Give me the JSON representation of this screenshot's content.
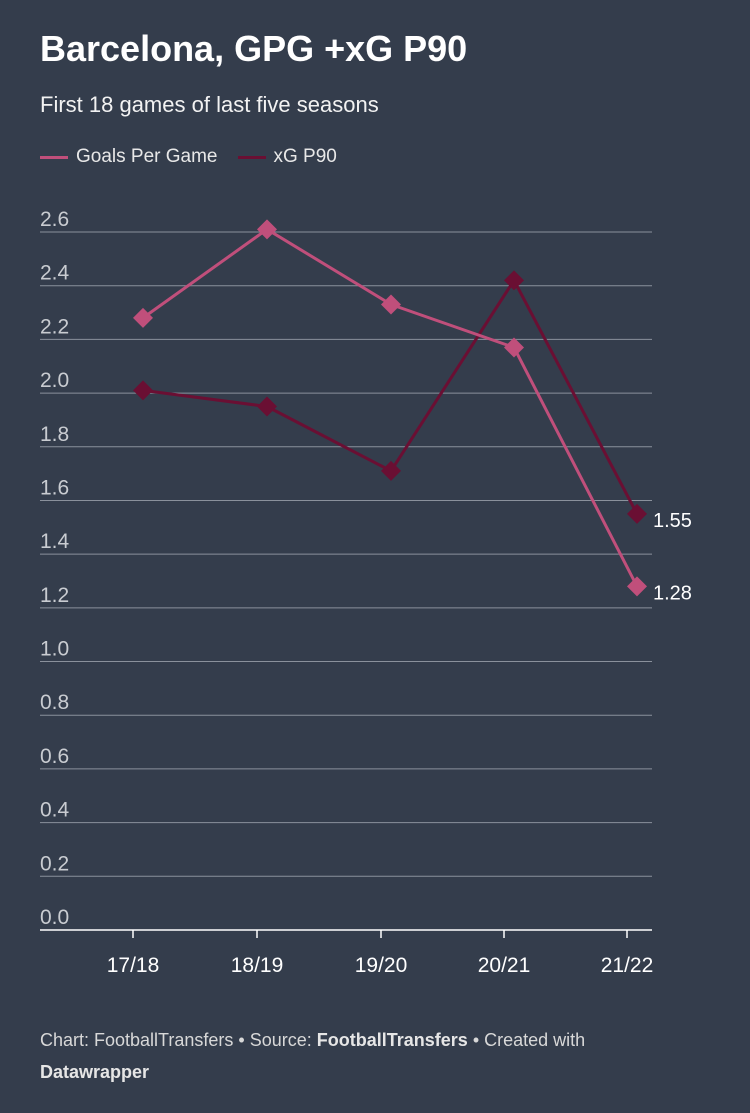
{
  "header": {
    "title": "Barcelona, GPG +xG P90",
    "subtitle": "First 18 games of last five seasons"
  },
  "legend": [
    {
      "label": "Goals Per Game",
      "color": "#c04f7b"
    },
    {
      "label": "xG P90",
      "color": "#6a0f33"
    }
  ],
  "footer": {
    "chart_prefix": "Chart: FootballTransfers",
    "source_label": "• Source:",
    "source_name": "FootballTransfers",
    "created_label": "• Created with",
    "tool_name": "Datawrapper"
  },
  "chart_data": {
    "type": "line",
    "categories": [
      "17/18",
      "18/19",
      "19/20",
      "20/21",
      "21/22"
    ],
    "series": [
      {
        "name": "Goals Per Game",
        "color": "#c04f7b",
        "values": [
          2.28,
          2.61,
          2.33,
          2.17,
          1.28
        ],
        "end_label": "1.28"
      },
      {
        "name": "xG P90",
        "color": "#6a0f33",
        "values": [
          2.01,
          1.95,
          1.71,
          2.42,
          1.55
        ],
        "end_label": "1.55"
      }
    ],
    "y_ticks": [
      "0.0",
      "0.2",
      "0.4",
      "0.6",
      "0.8",
      "1.0",
      "1.2",
      "1.4",
      "1.6",
      "1.8",
      "2.0",
      "2.2",
      "2.4",
      "2.6"
    ],
    "ylim": [
      0,
      2.6
    ],
    "grid": true
  }
}
